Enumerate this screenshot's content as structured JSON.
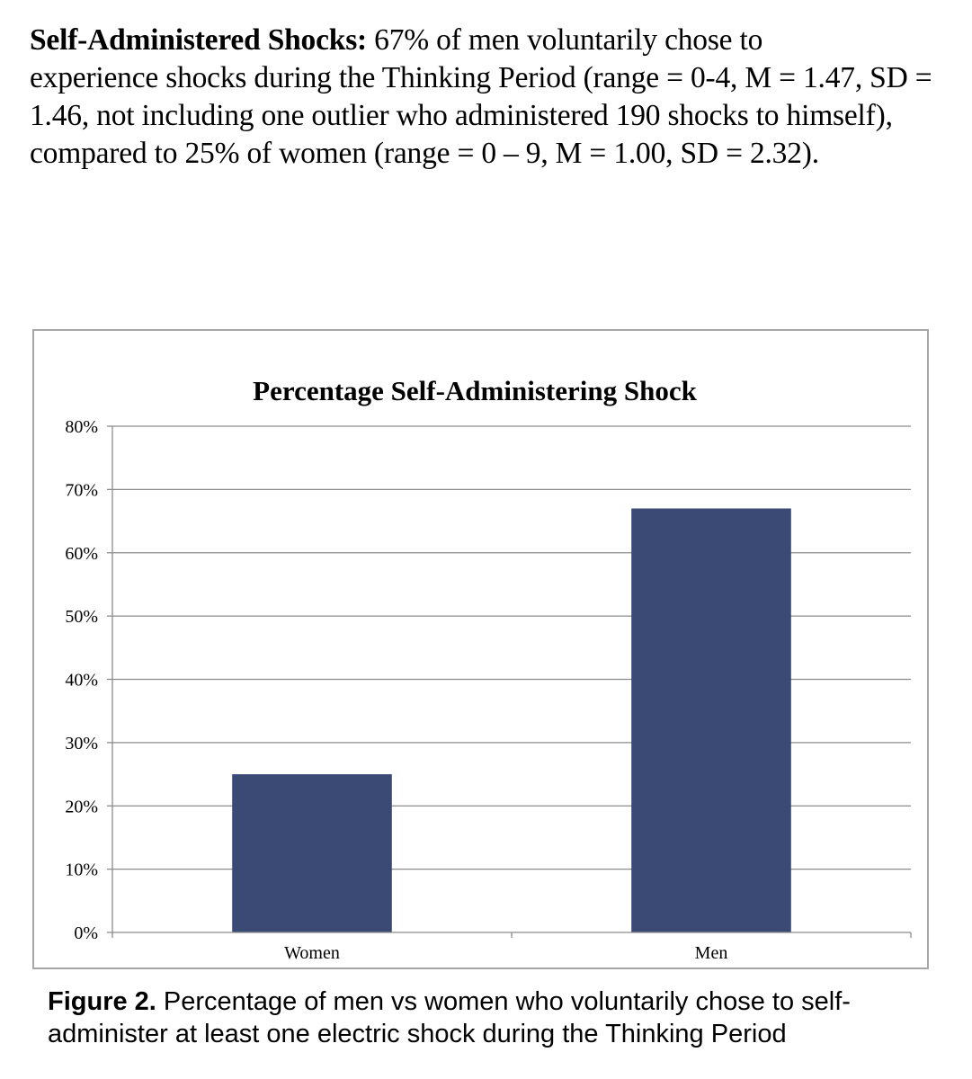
{
  "paragraph": {
    "lead": "Self-Administered Shocks:",
    "body": " 67% of men voluntarily chose to\nexperience shocks during the Thinking Period (range = 0-4, M = 1.47, SD =\n1.46, not including one outlier who administered 190 shocks to himself),\ncompared to 25% of women (range = 0 – 9, M = 1.00, SD = 2.32)."
  },
  "chart_data": {
    "type": "bar",
    "title": "Percentage Self-Administering Shock",
    "categories": [
      "Women",
      "Men"
    ],
    "values": [
      25,
      67
    ],
    "ylim": [
      0,
      80
    ],
    "yticks": [
      "0%",
      "10%",
      "20%",
      "30%",
      "40%",
      "50%",
      "60%",
      "70%",
      "80%"
    ],
    "grid": true,
    "bar_color": "#3a4a75",
    "legend": "none"
  },
  "caption": {
    "label": "Figure 2.",
    "text": " Percentage of men vs women who voluntarily chose to self-\nadminister at least one electric shock during the Thinking Period"
  }
}
